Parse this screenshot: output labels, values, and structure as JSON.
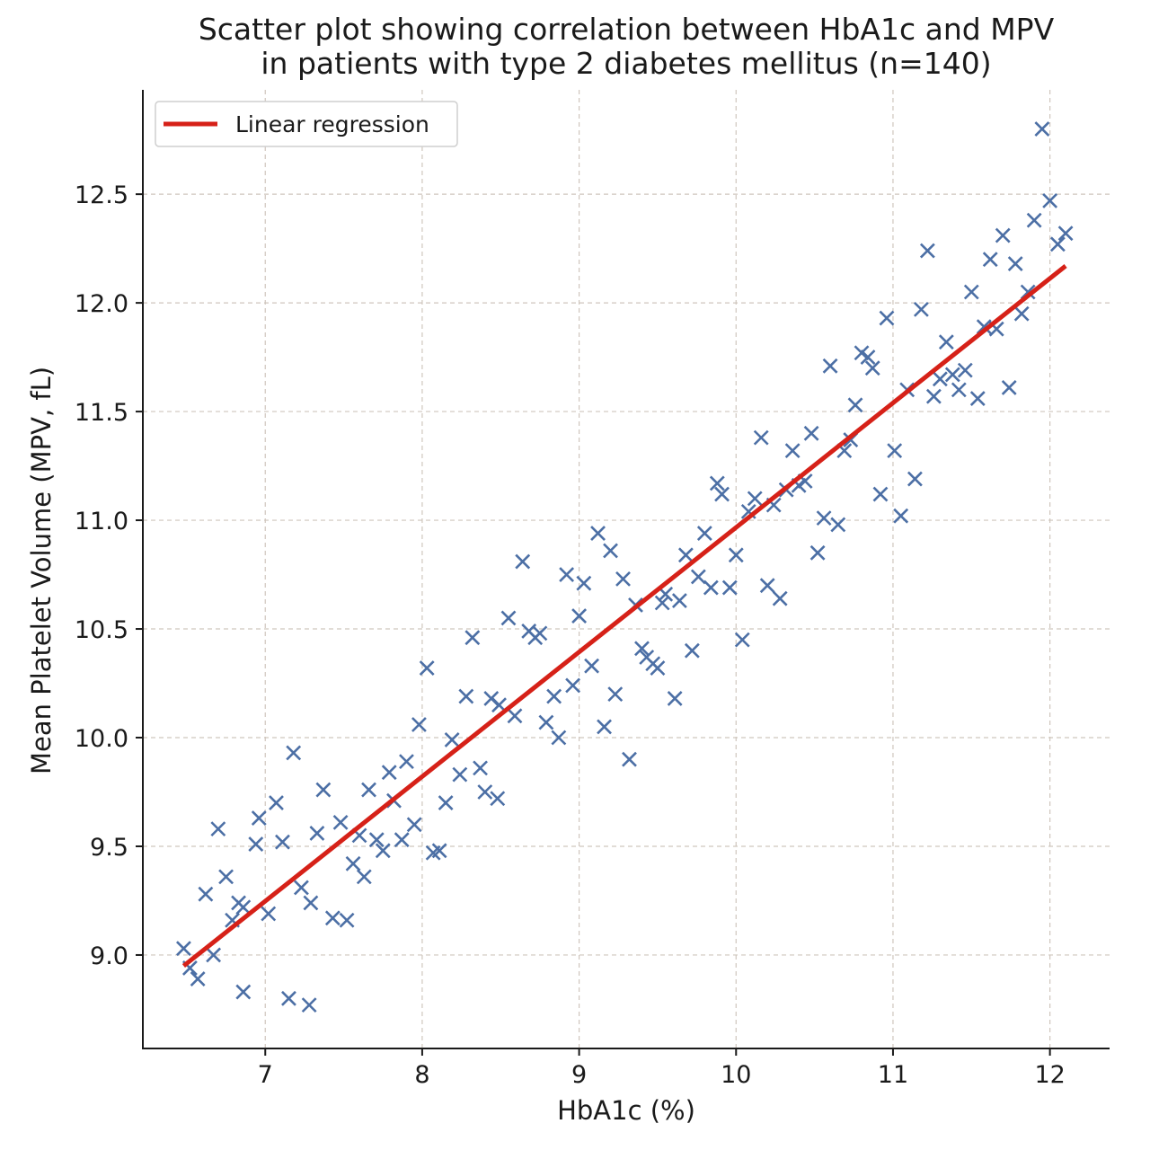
{
  "chart_data": {
    "type": "scatter",
    "title_lines": [
      "Scatter plot showing correlation between HbA1c and MPV",
      "in patients with type 2 diabetes mellitus (n=140)"
    ],
    "xlabel": "HbA1c (%)",
    "ylabel": "Mean Platelet Volume (MPV, fL)",
    "xlim": [
      6.22,
      12.38
    ],
    "ylim": [
      8.57,
      12.98
    ],
    "xticks": [
      7,
      8,
      9,
      10,
      11,
      12
    ],
    "xtick_labels": [
      "7",
      "8",
      "9",
      "10",
      "11",
      "12"
    ],
    "yticks": [
      9.0,
      9.5,
      10.0,
      10.5,
      11.0,
      11.5,
      12.0,
      12.5
    ],
    "ytick_labels": [
      "9.0",
      "9.5",
      "10.0",
      "10.5",
      "11.0",
      "11.5",
      "12.0",
      "12.5"
    ],
    "grid": true,
    "legend": {
      "position": "top-left",
      "entries": [
        "Linear regression"
      ]
    },
    "colors": {
      "points": "#4c6fa5",
      "regression": "#d62118"
    },
    "series": [
      {
        "kind": "points",
        "marker": "x",
        "x": [
          6.48,
          6.52,
          6.57,
          6.62,
          6.67,
          6.7,
          6.75,
          6.79,
          6.83,
          6.86,
          6.86,
          6.94,
          6.96,
          7.02,
          7.07,
          7.11,
          7.15,
          7.18,
          7.23,
          7.28,
          7.29,
          7.33,
          7.37,
          7.43,
          7.48,
          7.52,
          7.56,
          7.6,
          7.63,
          7.66,
          7.71,
          7.75,
          7.79,
          7.82,
          7.87,
          7.9,
          7.95,
          7.98,
          8.03,
          8.07,
          8.11,
          8.15,
          8.19,
          8.24,
          8.28,
          8.32,
          8.37,
          8.4,
          8.44,
          8.48,
          8.49,
          8.55,
          8.59,
          8.64,
          8.68,
          8.72,
          8.75,
          8.79,
          8.84,
          8.87,
          8.92,
          8.96,
          9.0,
          9.03,
          9.08,
          9.12,
          9.16,
          9.2,
          9.23,
          9.28,
          9.32,
          9.36,
          9.4,
          9.43,
          9.47,
          9.5,
          9.53,
          9.55,
          9.61,
          9.64,
          9.68,
          9.72,
          9.76,
          9.8,
          9.84,
          9.88,
          9.91,
          9.96,
          10.0,
          10.04,
          10.08,
          10.12,
          10.16,
          10.2,
          10.24,
          10.28,
          10.32,
          10.36,
          10.4,
          10.44,
          10.48,
          10.52,
          10.56,
          10.6,
          10.65,
          10.69,
          10.73,
          10.76,
          10.8,
          10.84,
          10.87,
          10.92,
          10.96,
          11.01,
          11.05,
          11.09,
          11.14,
          11.18,
          11.22,
          11.26,
          11.3,
          11.34,
          11.38,
          11.42,
          11.46,
          11.5,
          11.54,
          11.58,
          11.62,
          11.66,
          11.7,
          11.74,
          11.78,
          11.82,
          11.86,
          11.9,
          11.95,
          12.0,
          12.05,
          12.1
        ],
        "y": [
          9.03,
          8.94,
          8.89,
          9.28,
          9.0,
          9.58,
          9.36,
          9.16,
          9.24,
          8.83,
          9.22,
          9.51,
          9.63,
          9.19,
          9.7,
          9.52,
          8.8,
          9.93,
          9.31,
          8.77,
          9.24,
          9.56,
          9.76,
          9.17,
          9.61,
          9.16,
          9.42,
          9.55,
          9.36,
          9.76,
          9.53,
          9.48,
          9.84,
          9.71,
          9.53,
          9.89,
          9.6,
          10.06,
          10.32,
          9.47,
          9.48,
          9.7,
          9.99,
          9.83,
          10.19,
          10.46,
          9.86,
          9.75,
          10.18,
          9.72,
          10.15,
          10.55,
          10.1,
          10.81,
          10.49,
          10.46,
          10.48,
          10.07,
          10.19,
          10.0,
          10.75,
          10.24,
          10.56,
          10.71,
          10.33,
          10.94,
          10.05,
          10.86,
          10.2,
          10.73,
          9.9,
          10.61,
          10.41,
          10.37,
          10.34,
          10.32,
          10.62,
          10.66,
          10.18,
          10.63,
          10.84,
          10.4,
          10.74,
          10.94,
          10.69,
          11.17,
          11.12,
          10.69,
          10.84,
          10.45,
          11.04,
          11.1,
          11.38,
          10.7,
          11.07,
          10.64,
          11.14,
          11.32,
          11.16,
          11.18,
          11.4,
          10.85,
          11.01,
          11.71,
          10.98,
          11.32,
          11.37,
          11.53,
          11.77,
          11.75,
          11.7,
          11.12,
          11.93,
          11.32,
          11.02,
          11.6,
          11.19,
          11.97,
          12.24,
          11.57,
          11.65,
          11.82,
          11.67,
          11.6,
          11.69,
          12.05,
          11.56,
          11.89,
          12.2,
          11.88,
          12.31,
          11.61,
          12.18,
          11.95,
          12.05,
          12.38,
          12.8,
          12.47,
          12.27,
          12.32
        ]
      },
      {
        "kind": "line",
        "name": "Linear regression",
        "x": [
          6.48,
          12.1
        ],
        "y": [
          8.95,
          12.17
        ]
      }
    ]
  }
}
